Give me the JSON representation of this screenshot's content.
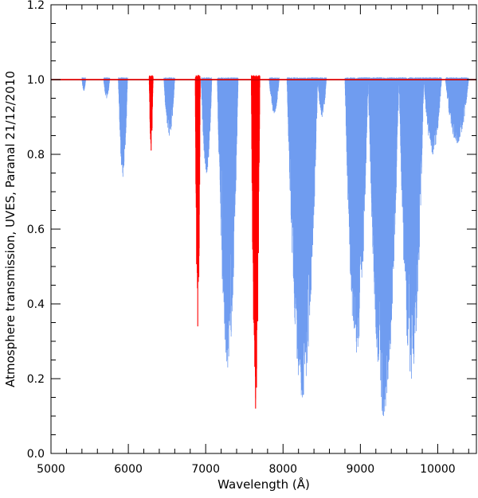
{
  "chart_data": {
    "type": "line",
    "title": "",
    "xlabel": "Wavelength (Å)",
    "ylabel": "Atmosphere transmission, UVES, Paranal 21/12/2010",
    "xlim": [
      5000,
      10500
    ],
    "ylim": [
      0.0,
      1.2
    ],
    "x_ticks": [
      5000,
      6000,
      7000,
      8000,
      9000,
      10000
    ],
    "x_tick_labels": [
      "5000",
      "6000",
      "7000",
      "8000",
      "9000",
      "10000"
    ],
    "y_ticks": [
      0.0,
      0.2,
      0.4,
      0.6,
      0.8,
      1.0,
      1.2
    ],
    "y_tick_labels": [
      "0.0",
      "0.2",
      "0.4",
      "0.6",
      "0.8",
      "1.0",
      "1.2"
    ],
    "grid": false,
    "reference_line": {
      "y": 1.0,
      "color": "#000000"
    },
    "colors": {
      "water_bands": "#6f9cf0",
      "oxygen_bands": "#ff0000",
      "axis": "#000000"
    },
    "series": [
      {
        "color": "#6f9cf0",
        "bands": [
          {
            "start": 5400,
            "end": 5450,
            "min": 0.97
          },
          {
            "start": 5680,
            "end": 5760,
            "min": 0.95
          },
          {
            "start": 5870,
            "end": 5990,
            "min": 0.74
          },
          {
            "start": 6460,
            "end": 6600,
            "min": 0.85
          },
          {
            "start": 6940,
            "end": 7080,
            "min": 0.75
          },
          {
            "start": 7150,
            "end": 7420,
            "min": 0.23
          },
          {
            "start": 7820,
            "end": 7950,
            "min": 0.91
          },
          {
            "start": 8050,
            "end": 8450,
            "min": 0.15
          },
          {
            "start": 8450,
            "end": 8560,
            "min": 0.9
          },
          {
            "start": 8800,
            "end": 9100,
            "min": 0.27
          },
          {
            "start": 9100,
            "end": 9500,
            "min": 0.1
          },
          {
            "start": 9500,
            "end": 9820,
            "min": 0.2
          },
          {
            "start": 9820,
            "end": 10050,
            "min": 0.8
          },
          {
            "start": 10100,
            "end": 10400,
            "min": 0.83
          }
        ]
      },
      {
        "color": "#ff0000",
        "bands": [
          {
            "start": 6270,
            "end": 6320,
            "min": 0.81
          },
          {
            "start": 6865,
            "end": 6930,
            "min": 0.34
          },
          {
            "start": 7590,
            "end": 7700,
            "min": 0.12
          }
        ]
      }
    ]
  }
}
